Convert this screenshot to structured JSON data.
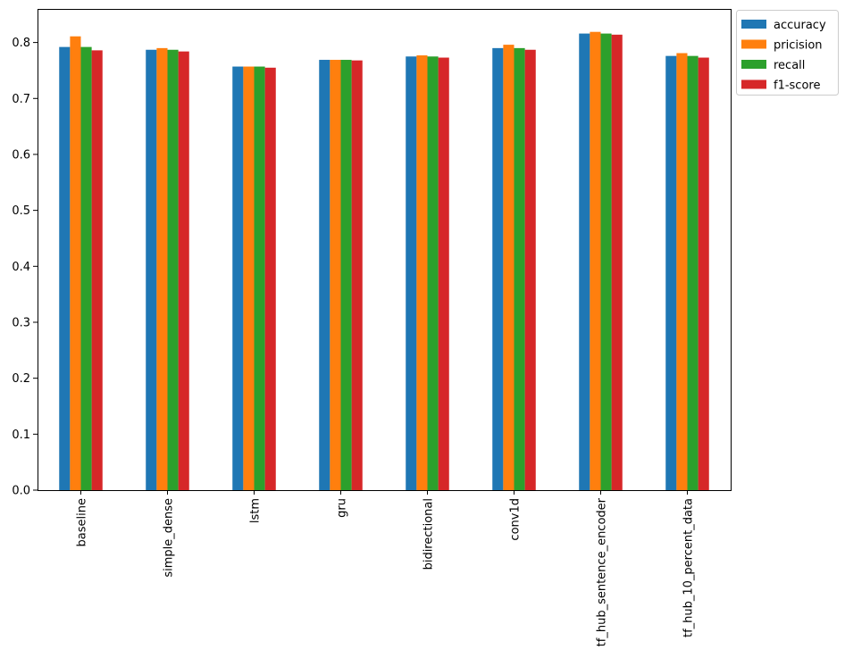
{
  "chart_data": {
    "type": "bar",
    "categories": [
      "baseline",
      "simple_dense",
      "lstm",
      "gru",
      "bidirectional",
      "conv1d",
      "tf_hub_sentence_encoder",
      "tf_hub_10_percent_data"
    ],
    "series": [
      {
        "name": "accuracy",
        "color": "#1f77b4",
        "values": [
          0.792,
          0.787,
          0.757,
          0.769,
          0.775,
          0.79,
          0.816,
          0.776
        ]
      },
      {
        "name": "pricision",
        "color": "#ff7f0e",
        "values": [
          0.811,
          0.79,
          0.757,
          0.769,
          0.777,
          0.796,
          0.819,
          0.781
        ]
      },
      {
        "name": "recall",
        "color": "#2ca02c",
        "values": [
          0.792,
          0.787,
          0.757,
          0.769,
          0.775,
          0.79,
          0.816,
          0.776
        ]
      },
      {
        "name": "f1-score",
        "color": "#d62728",
        "values": [
          0.786,
          0.784,
          0.755,
          0.768,
          0.773,
          0.787,
          0.814,
          0.773
        ]
      }
    ],
    "yticks": [
      "0.0",
      "0.1",
      "0.2",
      "0.3",
      "0.4",
      "0.5",
      "0.6",
      "0.7",
      "0.8"
    ],
    "ylim": [
      0,
      0.86
    ],
    "title": "",
    "xlabel": "",
    "ylabel": "",
    "legend_position": "outside-top-right",
    "grid": false
  }
}
